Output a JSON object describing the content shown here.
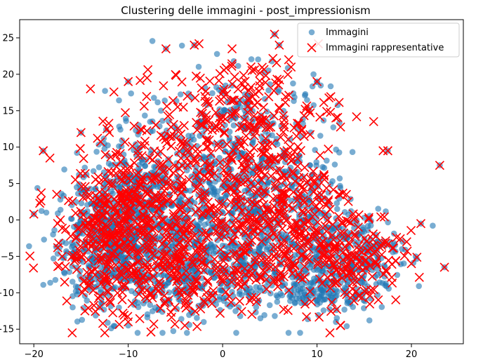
{
  "chart_data": {
    "type": "scatter",
    "title": "Clustering delle immagini - post_impressionism",
    "xlabel": "",
    "ylabel": "",
    "xlim": [
      -21.5,
      25.5
    ],
    "ylim": [
      -17,
      27.5
    ],
    "xticks": [
      -20,
      -10,
      0,
      10,
      20
    ],
    "yticks": [
      -15,
      -10,
      -5,
      0,
      5,
      10,
      15,
      20,
      25
    ],
    "grid": false,
    "legend": {
      "placement": "top-right"
    },
    "series": [
      {
        "name": "Immagini",
        "marker": "circle",
        "color": "#1f77b4",
        "alpha": 0.6,
        "cluster_summary": [
          {
            "cx": -12,
            "cy": -3,
            "sx": 2.8,
            "sy": 4.5,
            "n": 520
          },
          {
            "cx": -8,
            "cy": 2,
            "sx": 3.0,
            "sy": 5.5,
            "n": 360
          },
          {
            "cx": -4,
            "cy": -6,
            "sx": 3.0,
            "sy": 4.0,
            "n": 260
          },
          {
            "cx": 1,
            "cy": 4,
            "sx": 3.2,
            "sy": 5.0,
            "n": 300
          },
          {
            "cx": 3,
            "cy": -5,
            "sx": 3.5,
            "sy": 3.5,
            "n": 220
          },
          {
            "cx": 8,
            "cy": 0,
            "sx": 3.0,
            "sy": 5.5,
            "n": 260
          },
          {
            "cx": 14,
            "cy": -5,
            "sx": 2.5,
            "sy": 3.5,
            "n": 220
          },
          {
            "cx": 2,
            "cy": 15,
            "sx": 4.0,
            "sy": 3.0,
            "n": 130
          },
          {
            "cx": 10,
            "cy": -10,
            "sx": 2.5,
            "sy": 1.5,
            "n": 110
          }
        ],
        "explicit_points": [
          [
            -19.0,
            9.5
          ],
          [
            -20.0,
            0.8
          ],
          [
            -17.0,
            -3.0
          ],
          [
            -6.0,
            23.5
          ],
          [
            -3.0,
            24.0
          ],
          [
            5.5,
            25.5
          ],
          [
            6.0,
            24.0
          ],
          [
            23.0,
            7.5
          ],
          [
            23.5,
            -6.5
          ],
          [
            21.0,
            -0.5
          ],
          [
            -2.0,
            -14.0
          ],
          [
            -10.0,
            -14.5
          ],
          [
            4.0,
            -13.5
          ],
          [
            12.0,
            -14.0
          ],
          [
            19.0,
            -4.0
          ],
          [
            -13.0,
            -12.0
          ],
          [
            -15.0,
            12.0
          ],
          [
            17.5,
            9.5
          ],
          [
            10.0,
            19.0
          ],
          [
            -10.0,
            19.0
          ]
        ]
      },
      {
        "name": "Immagini rappresentative",
        "marker": "x",
        "color": "#ff0000",
        "cluster_summary": [
          {
            "cx": -12,
            "cy": -3,
            "sx": 3.0,
            "sy": 5.0,
            "n": 300
          },
          {
            "cx": -8,
            "cy": 5,
            "sx": 3.0,
            "sy": 5.5,
            "n": 200
          },
          {
            "cx": -4,
            "cy": -6,
            "sx": 3.0,
            "sy": 4.0,
            "n": 170
          },
          {
            "cx": 1,
            "cy": 6,
            "sx": 3.5,
            "sy": 6.0,
            "n": 200
          },
          {
            "cx": 4,
            "cy": -5,
            "sx": 3.5,
            "sy": 3.5,
            "n": 140
          },
          {
            "cx": 8,
            "cy": 2,
            "sx": 3.0,
            "sy": 6.0,
            "n": 180
          },
          {
            "cx": 14,
            "cy": -5,
            "sx": 2.5,
            "sy": 3.5,
            "n": 150
          },
          {
            "cx": 3,
            "cy": 16,
            "sx": 4.5,
            "sy": 3.0,
            "n": 120
          }
        ],
        "explicit_points": [
          [
            -19.0,
            9.5
          ],
          [
            -20.0,
            0.8
          ],
          [
            -17.0,
            -5.0
          ],
          [
            -6.0,
            23.5
          ],
          [
            -3.0,
            24.0
          ],
          [
            -2.5,
            24.2
          ],
          [
            1.0,
            23.5
          ],
          [
            5.5,
            25.5
          ],
          [
            6.0,
            24.0
          ],
          [
            23.0,
            7.5
          ],
          [
            23.5,
            -6.5
          ],
          [
            21.0,
            -0.5
          ],
          [
            -4.0,
            -14.5
          ],
          [
            -10.0,
            -14.0
          ],
          [
            12.5,
            -14.5
          ],
          [
            -13.0,
            -12.0
          ],
          [
            -14.0,
            18.0
          ],
          [
            10.0,
            19.0
          ],
          [
            -10.0,
            19.0
          ],
          [
            17.5,
            9.5
          ],
          [
            19.5,
            -3.0
          ],
          [
            20.0,
            -6.0
          ],
          [
            -8.0,
            19.5
          ],
          [
            7.0,
            22.0
          ],
          [
            3.0,
            21.0
          ],
          [
            -15.0,
            12.0
          ],
          [
            16.0,
            13.5
          ],
          [
            12.0,
            14.0
          ],
          [
            -12.0,
            12.0
          ],
          [
            17.0,
            9.5
          ]
        ]
      }
    ]
  }
}
